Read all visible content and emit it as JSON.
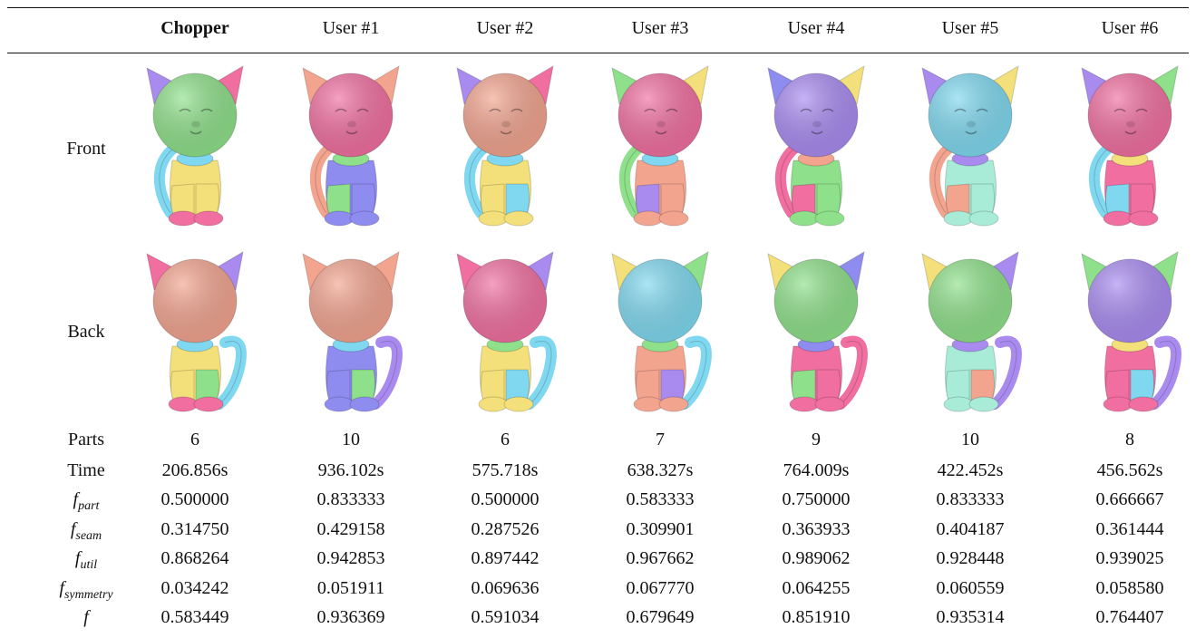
{
  "columns": [
    "Chopper",
    "User #1",
    "User #2",
    "User #3",
    "User #4",
    "User #5",
    "User #6"
  ],
  "row_labels": {
    "front": "Front",
    "back": "Back",
    "parts": "Parts",
    "time": "Time"
  },
  "metric_labels": [
    {
      "base": "f",
      "sub": "part"
    },
    {
      "base": "f",
      "sub": "seam"
    },
    {
      "base": "f",
      "sub": "util"
    },
    {
      "base": "f",
      "sub": "symmetry"
    },
    {
      "base": "f",
      "sub": ""
    }
  ],
  "parts": [
    "6",
    "10",
    "6",
    "7",
    "9",
    "10",
    "8"
  ],
  "time": [
    "206.856s",
    "936.102s",
    "575.718s",
    "638.327s",
    "764.009s",
    "422.452s",
    "456.562s"
  ],
  "f_part": [
    "0.500000",
    "0.833333",
    "0.500000",
    "0.583333",
    "0.750000",
    "0.833333",
    "0.666667"
  ],
  "f_seam": [
    "0.314750",
    "0.429158",
    "0.287526",
    "0.309901",
    "0.363933",
    "0.404187",
    "0.361444"
  ],
  "f_util": [
    "0.868264",
    "0.942853",
    "0.897442",
    "0.967662",
    "0.989062",
    "0.928448",
    "0.939025"
  ],
  "f_symmetry": [
    "0.034242",
    "0.051911",
    "0.069636",
    "0.067770",
    "0.064255",
    "0.060559",
    "0.058580"
  ],
  "f": [
    "0.583449",
    "0.936369",
    "0.591034",
    "0.679649",
    "0.851910",
    "0.935314",
    "0.764407"
  ],
  "palette": {
    "green": "#8ee08a",
    "pink": "#f06fa0",
    "purple": "#a98bf0",
    "yellow": "#f4e07a",
    "cyan": "#7fd8ef",
    "salmon": "#f2a48f",
    "mint": "#a8ecd8",
    "blue": "#8f8cf0"
  },
  "front_colors": [
    {
      "head": "green",
      "ear_l": "purple",
      "ear_r": "pink",
      "body": "yellow",
      "neck": "cyan",
      "tail": "cyan",
      "leg_l": "yellow",
      "leg_r": "yellow",
      "feet": "pink"
    },
    {
      "head": "pink",
      "ear_l": "salmon",
      "ear_r": "salmon",
      "body": "blue",
      "neck": "green",
      "tail": "salmon",
      "leg_l": "green",
      "leg_r": "blue",
      "feet": "blue"
    },
    {
      "head": "salmon",
      "ear_l": "purple",
      "ear_r": "pink",
      "body": "yellow",
      "neck": "cyan",
      "tail": "cyan",
      "leg_l": "yellow",
      "leg_r": "cyan",
      "feet": "yellow"
    },
    {
      "head": "pink",
      "ear_l": "green",
      "ear_r": "yellow",
      "body": "salmon",
      "neck": "cyan",
      "tail": "green",
      "leg_l": "purple",
      "leg_r": "salmon",
      "feet": "salmon"
    },
    {
      "head": "purple",
      "ear_l": "blue",
      "ear_r": "yellow",
      "body": "green",
      "neck": "salmon",
      "tail": "pink",
      "leg_l": "pink",
      "leg_r": "green",
      "feet": "green"
    },
    {
      "head": "cyan",
      "ear_l": "purple",
      "ear_r": "yellow",
      "body": "mint",
      "neck": "purple",
      "tail": "salmon",
      "leg_l": "salmon",
      "leg_r": "mint",
      "feet": "mint"
    },
    {
      "head": "pink",
      "ear_l": "purple",
      "ear_r": "green",
      "body": "pink",
      "neck": "yellow",
      "tail": "cyan",
      "leg_l": "cyan",
      "leg_r": "pink",
      "feet": "pink"
    }
  ],
  "back_colors": [
    {
      "head": "salmon",
      "ear_l": "pink",
      "ear_r": "purple",
      "body": "yellow",
      "neck": "cyan",
      "tail": "cyan",
      "leg_l": "yellow",
      "leg_r": "green",
      "feet": "pink"
    },
    {
      "head": "salmon",
      "ear_l": "salmon",
      "ear_r": "salmon",
      "body": "blue",
      "neck": "cyan",
      "tail": "purple",
      "leg_l": "blue",
      "leg_r": "green",
      "feet": "blue"
    },
    {
      "head": "pink",
      "ear_l": "pink",
      "ear_r": "purple",
      "body": "yellow",
      "neck": "green",
      "tail": "cyan",
      "leg_l": "yellow",
      "leg_r": "cyan",
      "feet": "yellow"
    },
    {
      "head": "cyan",
      "ear_l": "yellow",
      "ear_r": "green",
      "body": "salmon",
      "neck": "green",
      "tail": "cyan",
      "leg_l": "salmon",
      "leg_r": "purple",
      "feet": "salmon"
    },
    {
      "head": "green",
      "ear_l": "yellow",
      "ear_r": "blue",
      "body": "pink",
      "neck": "blue",
      "tail": "pink",
      "leg_l": "green",
      "leg_r": "pink",
      "feet": "pink"
    },
    {
      "head": "green",
      "ear_l": "yellow",
      "ear_r": "purple",
      "body": "mint",
      "neck": "purple",
      "tail": "purple",
      "leg_l": "mint",
      "leg_r": "salmon",
      "feet": "mint"
    },
    {
      "head": "purple",
      "ear_l": "green",
      "ear_r": "green",
      "body": "pink",
      "neck": "yellow",
      "tail": "purple",
      "leg_l": "pink",
      "leg_r": "cyan",
      "feet": "pink"
    }
  ]
}
